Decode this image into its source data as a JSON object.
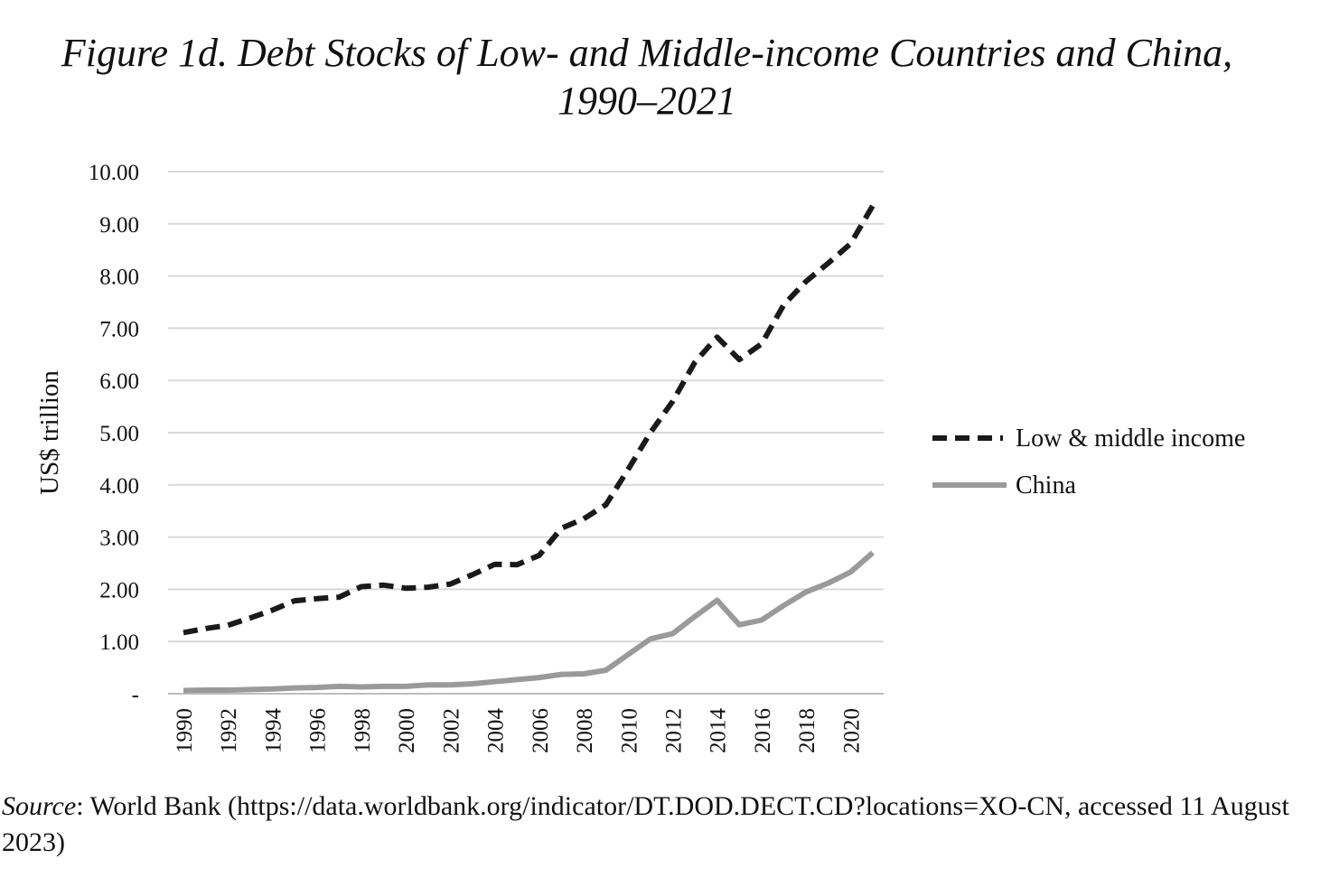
{
  "title": {
    "line1": "Figure 1d.  Debt Stocks of Low- and Middle-income Countries and China,",
    "line2": "1990–2021"
  },
  "source": {
    "label": "Source",
    "text": ": World Bank (https://data.worldbank.org/indicator/DT.DOD.DECT.CD?locations=XO-CN, accessed 11 August 2023)"
  },
  "chart_data": {
    "type": "line",
    "title": "Figure 1d.  Debt Stocks of Low- and Middle-income Countries and China, 1990–2021",
    "xlabel": "",
    "ylabel": "US$ trillion",
    "ylim": [
      0,
      10
    ],
    "yticks": [
      "-",
      "1.00",
      "2.00",
      "3.00",
      "4.00",
      "5.00",
      "6.00",
      "7.00",
      "8.00",
      "9.00",
      "10.00"
    ],
    "xtick_labels": [
      "1990",
      "1992",
      "1994",
      "1996",
      "1998",
      "2000",
      "2002",
      "2004",
      "2006",
      "2008",
      "2010",
      "2012",
      "2014",
      "2016",
      "2018",
      "2020"
    ],
    "grid": "horizontal",
    "legend": "right",
    "x": [
      1990,
      1991,
      1992,
      1993,
      1994,
      1995,
      1996,
      1997,
      1998,
      1999,
      2000,
      2001,
      2002,
      2003,
      2004,
      2005,
      2006,
      2007,
      2008,
      2009,
      2010,
      2011,
      2012,
      2013,
      2014,
      2015,
      2016,
      2017,
      2018,
      2019,
      2020,
      2021
    ],
    "series": [
      {
        "name": "Low & middle income",
        "style": "dashed",
        "color": "#1a1a1a",
        "values": [
          1.17,
          1.25,
          1.31,
          1.45,
          1.6,
          1.78,
          1.82,
          1.85,
          2.05,
          2.08,
          2.02,
          2.04,
          2.1,
          2.28,
          2.48,
          2.47,
          2.65,
          3.17,
          3.35,
          3.62,
          4.3,
          5.0,
          5.6,
          6.35,
          6.83,
          6.4,
          6.7,
          7.45,
          7.9,
          8.25,
          8.62,
          9.35
        ]
      },
      {
        "name": "China",
        "style": "solid",
        "color": "#9a9a9a",
        "values": [
          0.06,
          0.07,
          0.07,
          0.08,
          0.09,
          0.11,
          0.12,
          0.14,
          0.13,
          0.14,
          0.14,
          0.17,
          0.17,
          0.19,
          0.23,
          0.27,
          0.31,
          0.37,
          0.38,
          0.45,
          0.75,
          1.05,
          1.15,
          1.48,
          1.79,
          1.32,
          1.41,
          1.69,
          1.95,
          2.12,
          2.33,
          2.7
        ]
      }
    ]
  }
}
